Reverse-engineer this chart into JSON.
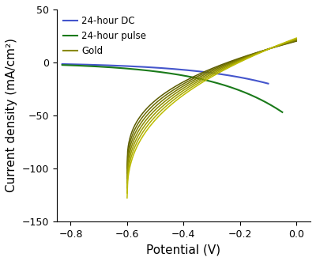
{
  "xlim": [
    -0.85,
    0.05
  ],
  "ylim": [
    -150,
    50
  ],
  "xlabel": "Potential (V)",
  "ylabel": "Current density (mA/cm²)",
  "xticks": [
    -0.8,
    -0.6,
    -0.4,
    -0.2,
    0.0
  ],
  "yticks": [
    -150,
    -100,
    -50,
    0,
    50
  ],
  "legend": [
    "24-hour DC",
    "24-hour pulse",
    "Gold"
  ],
  "dc_color": "#4455cc",
  "pulse_color": "#1a7a1a",
  "gold_colors": [
    "#5c5c00",
    "#6b6b00",
    "#7a7a00",
    "#8a8a00",
    "#9a9a00",
    "#aaaa00",
    "#bcbc00"
  ],
  "figsize": [
    4.0,
    3.3
  ],
  "dpi": 100
}
